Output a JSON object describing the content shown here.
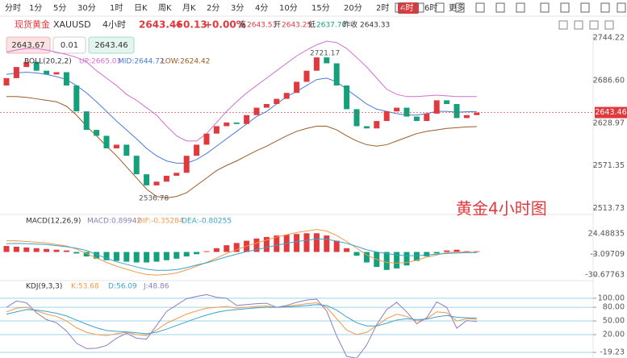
{
  "toolbar": {
    "intervals": [
      "分时",
      "1分",
      "5分",
      "30分",
      "1时",
      "日K",
      "周K",
      "月K",
      "2分",
      "3分",
      "4分",
      "10分",
      "15分",
      "20分",
      "2时",
      "4时",
      "6时",
      "更多"
    ],
    "active": "4时"
  },
  "header": {
    "name": "现货黄金",
    "symbol": "XAUUSD",
    "period": "4小时",
    "price": "2643.46",
    "change": "+0.13",
    "change_pct": "+0.00%",
    "high_label": "高",
    "high": "2643.53",
    "open_label": "开",
    "open": "2643.25",
    "low_label": "低",
    "low": "2637.70",
    "prev_label": "昨收",
    "prev": "2643.33"
  },
  "trade": {
    "sell": "2643.67",
    "lots": "0.01",
    "buy": "2643.46"
  },
  "chart": {
    "type": "candlestick",
    "main": {
      "indicator": "BOLL(20,2,2)",
      "up_label": "UP:2665.03",
      "mid_label": "MID:2644.72",
      "low_label": "LOW:2624.42",
      "high_note": "2721.17",
      "low_note": "2536.78",
      "price_tag": "2643.46",
      "ylim": [
        2510,
        2752
      ],
      "yticks": [
        2744.22,
        {
          "value": 2686.6,
          "label": "2686.60"
        },
        2628.97,
        2571.35,
        2513.73
      ],
      "open": [
        2680,
        2690,
        2705,
        2712,
        2700,
        2695,
        2698,
        2680,
        2645,
        2620,
        2612,
        2595,
        2600,
        2585,
        2560,
        2545,
        2550,
        2558,
        2562,
        2585,
        2600,
        2615,
        2625,
        2630,
        2628,
        2640,
        2650,
        2655,
        2662,
        2670,
        2685,
        2700,
        2718,
        2710,
        2680,
        2648,
        2625,
        2622,
        2632,
        2645,
        2650,
        2638,
        2632,
        2642,
        2660,
        2655,
        2636,
        2640
      ],
      "close": [
        2690,
        2705,
        2712,
        2700,
        2695,
        2698,
        2680,
        2645,
        2620,
        2612,
        2595,
        2600,
        2585,
        2560,
        2545,
        2550,
        2558,
        2562,
        2585,
        2600,
        2615,
        2625,
        2630,
        2628,
        2640,
        2650,
        2655,
        2662,
        2670,
        2685,
        2700,
        2718,
        2710,
        2680,
        2648,
        2625,
        2622,
        2632,
        2645,
        2650,
        2638,
        2632,
        2642,
        2660,
        2655,
        2636,
        2640,
        2643.46
      ],
      "series": [
        {
          "name": "UP",
          "color": "#d46fd1",
          "values": [
            2725,
            2728,
            2730,
            2730,
            2728,
            2725,
            2722,
            2718,
            2712,
            2700,
            2690,
            2680,
            2668,
            2660,
            2650,
            2640,
            2625,
            2612,
            2605,
            2605,
            2615,
            2630,
            2645,
            2658,
            2670,
            2680,
            2690,
            2700,
            2710,
            2720,
            2728,
            2735,
            2740,
            2738,
            2730,
            2718,
            2705,
            2690,
            2675,
            2668,
            2665,
            2665,
            2666,
            2667,
            2666,
            2665,
            2665,
            2665.03
          ]
        },
        {
          "name": "MID",
          "color": "#4a7bd9",
          "values": [
            2695,
            2697,
            2698,
            2697,
            2695,
            2692,
            2688,
            2680,
            2670,
            2658,
            2645,
            2632,
            2620,
            2608,
            2595,
            2585,
            2578,
            2575,
            2575,
            2580,
            2588,
            2598,
            2608,
            2618,
            2628,
            2638,
            2645,
            2655,
            2665,
            2672,
            2680,
            2688,
            2690,
            2685,
            2675,
            2665,
            2655,
            2648,
            2645,
            2642,
            2640,
            2640,
            2642,
            2645,
            2645,
            2644,
            2644.5,
            2644.72
          ]
        },
        {
          "name": "LOW",
          "color": "#9c5b28",
          "values": [
            2665,
            2665,
            2664,
            2662,
            2660,
            2658,
            2652,
            2640,
            2625,
            2612,
            2598,
            2585,
            2570,
            2555,
            2540,
            2530,
            2528,
            2530,
            2535,
            2545,
            2555,
            2565,
            2572,
            2578,
            2585,
            2592,
            2598,
            2605,
            2612,
            2618,
            2622,
            2625,
            2625,
            2620,
            2612,
            2605,
            2600,
            2598,
            2600,
            2605,
            2610,
            2615,
            2618,
            2620,
            2622,
            2623,
            2624,
            2624.42
          ]
        }
      ]
    },
    "macd": {
      "indicator": "MACD(12,26,9)",
      "macd_label": "MACD:0.89942",
      "dif_label": "DIF:-0.35284",
      "dea_label": "DEA:-0.80255",
      "ylim": [
        -35,
        35
      ],
      "yticks": [
        24.48835,
        -3.09709,
        -30.67763
      ],
      "hist": [
        8,
        7,
        6,
        5,
        4,
        3,
        2,
        -2,
        -6,
        -9,
        -11,
        -12,
        -13,
        -14,
        -14,
        -13,
        -11,
        -9,
        -6,
        -3,
        1,
        5,
        9,
        12,
        15,
        18,
        20,
        22,
        23,
        24,
        25,
        25,
        22,
        15,
        5,
        -5,
        -14,
        -20,
        -24,
        -22,
        -18,
        -12,
        -6,
        -2,
        2,
        3,
        1,
        0.89942
      ],
      "series": [
        {
          "name": "DIF",
          "color": "#f2994a",
          "values": [
            15,
            15,
            14,
            13,
            12,
            10,
            8,
            4,
            -2,
            -8,
            -14,
            -19,
            -23,
            -27,
            -30,
            -31,
            -30,
            -28,
            -24,
            -19,
            -14,
            -8,
            -2,
            3,
            8,
            12,
            16,
            20,
            23,
            26,
            28,
            30,
            28,
            22,
            14,
            5,
            -4,
            -10,
            -14,
            -15,
            -14,
            -11,
            -7,
            -4,
            -1,
            0,
            -0.2,
            -0.35284
          ]
        },
        {
          "name": "DEA",
          "color": "#3aa3c9",
          "values": [
            11,
            11.5,
            11,
            10.5,
            10,
            8.5,
            7,
            5,
            2,
            -3.5,
            -8.5,
            -13,
            -16.5,
            -20,
            -23,
            -24.5,
            -24.5,
            -23.5,
            -21,
            -17.5,
            -14.5,
            -10.5,
            -6.5,
            -3,
            0.5,
            3,
            6,
            9,
            11.5,
            14,
            15.5,
            17.5,
            17,
            14.5,
            11.5,
            7.5,
            3,
            0,
            -2,
            -4,
            -5,
            -5,
            -4,
            -3,
            -2,
            -1.5,
            -1,
            -0.80255
          ]
        }
      ]
    },
    "kdj": {
      "indicator": "KDJ(9,3,3)",
      "k_label": "K:53.68",
      "d_label": "D:56.09",
      "j_label": "J:48.86",
      "ylim": [
        -28,
        114
      ],
      "yticks": [
        {
          "value": 100,
          "label": "100.00"
        },
        {
          "value": 80,
          "label": "80.00"
        },
        {
          "value": 50,
          "label": "50.00"
        },
        {
          "value": 20,
          "label": "20.00"
        },
        -19.23
      ],
      "series": [
        {
          "name": "K",
          "color": "#f2994a",
          "values": [
            70,
            78,
            80,
            72,
            65,
            60,
            50,
            35,
            25,
            20,
            18,
            22,
            25,
            20,
            18,
            30,
            45,
            55,
            65,
            72,
            78,
            80,
            82,
            78,
            80,
            82,
            83,
            80,
            82,
            85,
            88,
            90,
            80,
            55,
            30,
            20,
            25,
            40,
            55,
            65,
            60,
            50,
            55,
            70,
            68,
            50,
            55,
            53.68
          ]
        },
        {
          "name": "D",
          "color": "#3aa3c9",
          "values": [
            65,
            70,
            75,
            74,
            71,
            67,
            61,
            52,
            43,
            35,
            29,
            27,
            26,
            24,
            22,
            25,
            32,
            40,
            48,
            56,
            63,
            69,
            73,
            75,
            77,
            79,
            80,
            80,
            81,
            82,
            84,
            86,
            84,
            74,
            59,
            46,
            39,
            39,
            45,
            52,
            55,
            53,
            54,
            59,
            62,
            58,
            57,
            56.09
          ]
        },
        {
          "name": "J",
          "color": "#8e7cc3",
          "values": [
            80,
            94,
            90,
            68,
            53,
            46,
            28,
            1,
            -11,
            -10,
            -4,
            12,
            23,
            12,
            10,
            40,
            71,
            85,
            99,
            104,
            108,
            102,
            100,
            84,
            86,
            88,
            89,
            80,
            84,
            91,
            96,
            98,
            72,
            17,
            -28,
            -32,
            -3,
            42,
            75,
            91,
            70,
            44,
            57,
            92,
            80,
            34,
            51,
            48.86
          ]
        }
      ]
    },
    "title": "黄金4小时图"
  }
}
